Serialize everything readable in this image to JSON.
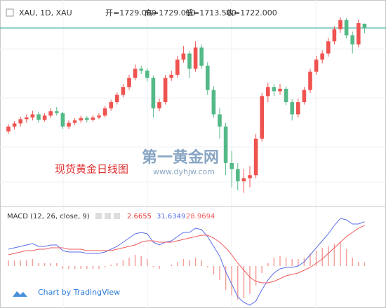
{
  "chart_data": [
    {
      "type": "candlestick",
      "title": "XAU, 1D, XAU",
      "ohlc_labels": [
        "开=1729.060",
        "高=1729.060",
        "低=1713.500",
        "收=1722.000"
      ],
      "annotation": "现货黄金日线图",
      "watermark": "第一黄金网",
      "watermark_url": "www.dyhjw.com",
      "up_color": "#ef5350",
      "down_color": "#53b987",
      "price_line_color": "#26a69a",
      "ylim": [
        1440,
        1745
      ],
      "open": [
        1552,
        1560,
        1565,
        1572,
        1575,
        1580,
        1571,
        1578,
        1585,
        1582,
        1560,
        1566,
        1570,
        1574,
        1571,
        1575,
        1578,
        1590,
        1600,
        1612,
        1625,
        1640,
        1655,
        1652,
        1640,
        1590,
        1600,
        1640,
        1645,
        1670,
        1680,
        1655,
        1690,
        1660,
        1620,
        1580,
        1560,
        1500,
        1490,
        1470,
        1475,
        1480,
        1540,
        1610,
        1625,
        1618,
        1622,
        1600,
        1580,
        1600,
        1620,
        1650,
        1670,
        1680,
        1700,
        1720,
        1735,
        1710,
        1695,
        1729.06
      ],
      "high": [
        1564,
        1569,
        1576,
        1580,
        1586,
        1584,
        1582,
        1590,
        1592,
        1584,
        1570,
        1574,
        1578,
        1577,
        1579,
        1582,
        1594,
        1604,
        1616,
        1630,
        1645,
        1662,
        1660,
        1656,
        1644,
        1606,
        1645,
        1652,
        1676,
        1692,
        1684,
        1700,
        1695,
        1666,
        1626,
        1590,
        1566,
        1520,
        1500,
        1490,
        1495,
        1548,
        1615,
        1632,
        1630,
        1630,
        1626,
        1605,
        1606,
        1625,
        1655,
        1676,
        1685,
        1706,
        1725,
        1740,
        1738,
        1716,
        1736,
        1729.06
      ],
      "low": [
        1548,
        1555,
        1560,
        1566,
        1570,
        1566,
        1568,
        1574,
        1578,
        1556,
        1556,
        1562,
        1566,
        1567,
        1568,
        1572,
        1575,
        1586,
        1596,
        1608,
        1620,
        1636,
        1646,
        1634,
        1575,
        1585,
        1596,
        1635,
        1640,
        1665,
        1640,
        1650,
        1655,
        1612,
        1575,
        1540,
        1480,
        1460,
        1455,
        1451,
        1460,
        1475,
        1535,
        1600,
        1610,
        1612,
        1595,
        1570,
        1575,
        1596,
        1615,
        1645,
        1664,
        1675,
        1695,
        1714,
        1705,
        1680,
        1690,
        1713.5
      ],
      "close": [
        1560,
        1565,
        1572,
        1575,
        1580,
        1571,
        1578,
        1585,
        1582,
        1560,
        1566,
        1570,
        1574,
        1571,
        1575,
        1578,
        1590,
        1600,
        1612,
        1625,
        1640,
        1655,
        1652,
        1640,
        1590,
        1600,
        1640,
        1645,
        1670,
        1680,
        1655,
        1690,
        1660,
        1620,
        1580,
        1560,
        1500,
        1490,
        1470,
        1475,
        1480,
        1540,
        1610,
        1625,
        1618,
        1622,
        1600,
        1580,
        1600,
        1620,
        1650,
        1670,
        1680,
        1700,
        1720,
        1735,
        1710,
        1695,
        1730,
        1722
      ]
    },
    {
      "type": "macd",
      "title": "MACD (12, 26, close, 9)",
      "value_labels": [
        "2.6655",
        "31.6349",
        "28.9694"
      ],
      "ylim": [
        -30,
        40
      ],
      "series": [
        {
          "color": "#5b6ee8",
          "values": [
            12,
            13,
            14,
            15,
            16,
            14,
            14,
            15,
            15,
            11,
            10,
            10,
            10,
            9,
            9,
            9,
            10,
            12,
            14,
            17,
            20,
            23,
            24,
            23,
            17,
            15,
            17,
            18,
            21,
            24,
            24,
            27,
            26,
            21,
            14,
            7,
            -4,
            -13,
            -22,
            -26,
            -28,
            -25,
            -17,
            -10,
            -5,
            -2,
            -1,
            -1,
            0,
            3,
            8,
            13,
            18,
            23,
            29,
            34,
            33,
            30,
            30,
            31.6349
          ]
        },
        {
          "color": "#f05a5a",
          "values": [
            8,
            9,
            10,
            11,
            11,
            12,
            12,
            13,
            13,
            13,
            12,
            12,
            12,
            11,
            11,
            11,
            11,
            11,
            12,
            13,
            14,
            15,
            17,
            18,
            18,
            17,
            17,
            17,
            18,
            19,
            20,
            21,
            22,
            22,
            20,
            17,
            13,
            8,
            2,
            -3,
            -8,
            -11,
            -12,
            -12,
            -11,
            -9,
            -7,
            -6,
            -5,
            -3,
            -1,
            2,
            5,
            9,
            13,
            17,
            21,
            24,
            27,
            28.9694
          ]
        }
      ],
      "histogram": {
        "color": "#f2a09a",
        "values": [
          4,
          4,
          4,
          4,
          5,
          2,
          2,
          2,
          2,
          -2,
          -2,
          -2,
          -2,
          -2,
          -2,
          -2,
          -1,
          1,
          2,
          4,
          6,
          8,
          7,
          5,
          -1,
          -2,
          0,
          1,
          3,
          5,
          4,
          6,
          4,
          -1,
          -6,
          -10,
          -17,
          -21,
          -24,
          -23,
          -20,
          -14,
          -5,
          2,
          6,
          7,
          6,
          5,
          5,
          6,
          9,
          11,
          13,
          14,
          16,
          17,
          12,
          6,
          3,
          2.6655
        ]
      },
      "credit": "Chart by TradingView"
    }
  ]
}
